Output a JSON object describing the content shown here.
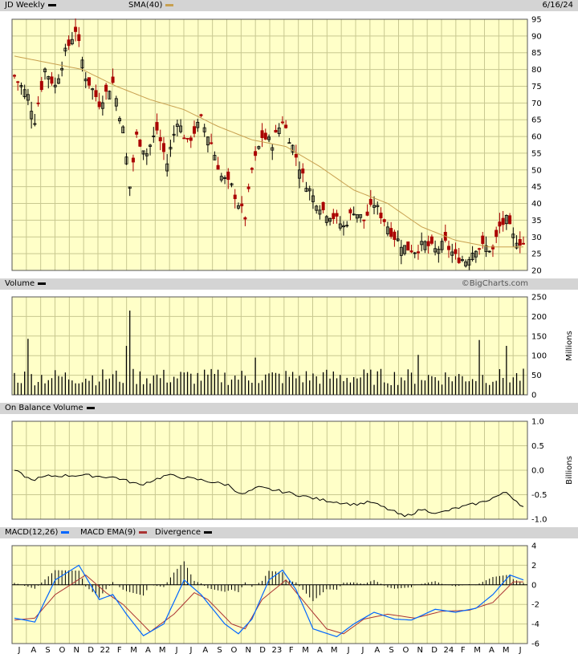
{
  "header": {
    "symbol_label": "JD Weekly",
    "sma_label": "SMA(40)",
    "date": "6/16/24",
    "watermark": "©BigCharts.com"
  },
  "panels": {
    "volume_label": "Volume",
    "obv_label": "On Balance Volume",
    "macd_label": "MACD(12,26)",
    "macd_ema_label": "MACD EMA(9)",
    "divergence_label": "Divergence"
  },
  "colors": {
    "background": "#ffffc8",
    "grid": "#c8c890",
    "up": "#000000",
    "down": "#aa0000",
    "sma": "#c8a050",
    "macd": "#0066ff",
    "macd_ema": "#aa3333",
    "band": "#d4d4d4"
  },
  "chart_data": [
    {
      "type": "candlestick",
      "title": "JD Weekly",
      "ylim": [
        20,
        95
      ],
      "y_ticks": [
        20,
        25,
        30,
        35,
        40,
        45,
        50,
        55,
        60,
        65,
        70,
        75,
        80,
        85,
        90,
        95
      ],
      "x_ticks": [
        "J",
        "A",
        "S",
        "O",
        "N",
        "D",
        "22",
        "F",
        "M",
        "A",
        "M",
        "J",
        "J",
        "A",
        "S",
        "O",
        "N",
        "D",
        "23",
        "F",
        "M",
        "A",
        "M",
        "J",
        "J",
        "A",
        "S",
        "O",
        "N",
        "D",
        "24",
        "F",
        "M",
        "A",
        "M",
        "J"
      ],
      "close_anchors": [
        {
          "week": 0,
          "close": 78
        },
        {
          "week": 4,
          "close": 72
        },
        {
          "week": 6,
          "close": 65
        },
        {
          "week": 9,
          "close": 80
        },
        {
          "week": 12,
          "close": 75
        },
        {
          "week": 15,
          "close": 85
        },
        {
          "week": 18,
          "close": 92
        },
        {
          "week": 21,
          "close": 78
        },
        {
          "week": 25,
          "close": 70
        },
        {
          "week": 29,
          "close": 76
        },
        {
          "week": 32,
          "close": 62
        },
        {
          "week": 34,
          "close": 45
        },
        {
          "week": 36,
          "close": 60
        },
        {
          "week": 39,
          "close": 55
        },
        {
          "week": 42,
          "close": 62
        },
        {
          "week": 45,
          "close": 52
        },
        {
          "week": 48,
          "close": 65
        },
        {
          "week": 51,
          "close": 58
        },
        {
          "week": 55,
          "close": 65
        },
        {
          "week": 58,
          "close": 58
        },
        {
          "week": 61,
          "close": 48
        },
        {
          "week": 64,
          "close": 45
        },
        {
          "week": 66,
          "close": 40
        },
        {
          "week": 68,
          "close": 36
        },
        {
          "week": 70,
          "close": 50
        },
        {
          "week": 73,
          "close": 60
        },
        {
          "week": 76,
          "close": 58
        },
        {
          "week": 79,
          "close": 65
        },
        {
          "week": 82,
          "close": 57
        },
        {
          "week": 85,
          "close": 48
        },
        {
          "week": 88,
          "close": 42
        },
        {
          "week": 91,
          "close": 38
        },
        {
          "week": 94,
          "close": 36
        },
        {
          "week": 97,
          "close": 33
        },
        {
          "week": 100,
          "close": 38
        },
        {
          "week": 103,
          "close": 35
        },
        {
          "week": 106,
          "close": 40
        },
        {
          "week": 109,
          "close": 35
        },
        {
          "week": 112,
          "close": 30
        },
        {
          "week": 115,
          "close": 27
        },
        {
          "week": 118,
          "close": 26
        },
        {
          "week": 121,
          "close": 28
        },
        {
          "week": 124,
          "close": 26
        },
        {
          "week": 127,
          "close": 28
        },
        {
          "week": 130,
          "close": 24
        },
        {
          "week": 133,
          "close": 23
        },
        {
          "week": 136,
          "close": 27
        },
        {
          "week": 139,
          "close": 27
        },
        {
          "week": 141,
          "close": 26
        },
        {
          "week": 143,
          "close": 33
        },
        {
          "week": 145,
          "close": 35
        },
        {
          "week": 147,
          "close": 30
        },
        {
          "week": 150,
          "close": 28
        }
      ],
      "sma40": [
        {
          "week": 0,
          "value": 84
        },
        {
          "week": 10,
          "value": 82
        },
        {
          "week": 20,
          "value": 80
        },
        {
          "week": 30,
          "value": 75
        },
        {
          "week": 40,
          "value": 71
        },
        {
          "week": 50,
          "value": 68
        },
        {
          "week": 60,
          "value": 63
        },
        {
          "week": 70,
          "value": 59
        },
        {
          "week": 80,
          "value": 57
        },
        {
          "week": 90,
          "value": 51
        },
        {
          "week": 100,
          "value": 44
        },
        {
          "week": 110,
          "value": 40
        },
        {
          "week": 120,
          "value": 33
        },
        {
          "week": 130,
          "value": 29
        },
        {
          "week": 140,
          "value": 27
        },
        {
          "week": 150,
          "value": 27
        }
      ]
    },
    {
      "type": "bar",
      "title": "Volume",
      "ylabel": "Millions",
      "ylim": [
        0,
        250
      ],
      "y_ticks": [
        0,
        50,
        100,
        150,
        200,
        250
      ],
      "spikes": [
        {
          "week": 4,
          "value": 143
        },
        {
          "week": 33,
          "value": 125
        },
        {
          "week": 34,
          "value": 215
        },
        {
          "week": 71,
          "value": 95
        },
        {
          "week": 119,
          "value": 102
        },
        {
          "week": 137,
          "value": 140
        },
        {
          "week": 145,
          "value": 125
        }
      ],
      "baseline": 48
    },
    {
      "type": "line",
      "title": "On Balance Volume",
      "ylabel": "Billions",
      "ylim": [
        -1.0,
        1.0
      ],
      "y_ticks": [
        -1.0,
        -0.5,
        0.0,
        0.5,
        1.0
      ],
      "points": [
        {
          "week": 0,
          "value": 0.0
        },
        {
          "week": 5,
          "value": -0.2
        },
        {
          "week": 10,
          "value": -0.12
        },
        {
          "week": 20,
          "value": -0.1
        },
        {
          "week": 30,
          "value": -0.15
        },
        {
          "week": 37,
          "value": -0.3
        },
        {
          "week": 45,
          "value": -0.1
        },
        {
          "week": 55,
          "value": -0.2
        },
        {
          "week": 63,
          "value": -0.3
        },
        {
          "week": 67,
          "value": -0.5
        },
        {
          "week": 72,
          "value": -0.35
        },
        {
          "week": 80,
          "value": -0.45
        },
        {
          "week": 90,
          "value": -0.6
        },
        {
          "week": 100,
          "value": -0.7
        },
        {
          "week": 105,
          "value": -0.65
        },
        {
          "week": 112,
          "value": -0.85
        },
        {
          "week": 115,
          "value": -0.95
        },
        {
          "week": 120,
          "value": -0.8
        },
        {
          "week": 125,
          "value": -0.88
        },
        {
          "week": 130,
          "value": -0.78
        },
        {
          "week": 138,
          "value": -0.65
        },
        {
          "week": 145,
          "value": -0.45
        },
        {
          "week": 150,
          "value": -0.75
        }
      ]
    },
    {
      "type": "macd",
      "title": "MACD(12,26)",
      "ylim": [
        -6,
        4
      ],
      "y_ticks": [
        -6,
        -4,
        -2,
        0,
        2,
        4
      ],
      "macd": [
        {
          "week": 0,
          "value": -3.4
        },
        {
          "week": 6,
          "value": -3.8
        },
        {
          "week": 12,
          "value": 0.5
        },
        {
          "week": 19,
          "value": 2.0
        },
        {
          "week": 25,
          "value": -1.5
        },
        {
          "week": 29,
          "value": -1.0
        },
        {
          "week": 33,
          "value": -3.0
        },
        {
          "week": 38,
          "value": -5.2
        },
        {
          "week": 44,
          "value": -4.0
        },
        {
          "week": 50,
          "value": 0.5
        },
        {
          "week": 55,
          "value": -1.0
        },
        {
          "week": 62,
          "value": -4.0
        },
        {
          "week": 66,
          "value": -5.0
        },
        {
          "week": 70,
          "value": -3.5
        },
        {
          "week": 75,
          "value": 0.5
        },
        {
          "week": 79,
          "value": 1.5
        },
        {
          "week": 83,
          "value": -0.5
        },
        {
          "week": 88,
          "value": -4.5
        },
        {
          "week": 95,
          "value": -5.3
        },
        {
          "week": 100,
          "value": -4.0
        },
        {
          "week": 106,
          "value": -2.8
        },
        {
          "week": 112,
          "value": -3.5
        },
        {
          "week": 117,
          "value": -3.6
        },
        {
          "week": 124,
          "value": -2.5
        },
        {
          "week": 130,
          "value": -2.8
        },
        {
          "week": 136,
          "value": -2.4
        },
        {
          "week": 141,
          "value": -1.0
        },
        {
          "week": 146,
          "value": 1.0
        },
        {
          "week": 150,
          "value": 0.5
        }
      ],
      "ema": [
        {
          "week": 0,
          "value": -3.6
        },
        {
          "week": 6,
          "value": -3.4
        },
        {
          "week": 12,
          "value": -1.0
        },
        {
          "week": 21,
          "value": 1.0
        },
        {
          "week": 27,
          "value": -0.8
        },
        {
          "week": 32,
          "value": -2.0
        },
        {
          "week": 40,
          "value": -4.8
        },
        {
          "week": 47,
          "value": -3.0
        },
        {
          "week": 53,
          "value": -0.8
        },
        {
          "week": 57,
          "value": -1.5
        },
        {
          "week": 64,
          "value": -4.0
        },
        {
          "week": 68,
          "value": -4.5
        },
        {
          "week": 73,
          "value": -1.5
        },
        {
          "week": 80,
          "value": 0.5
        },
        {
          "week": 86,
          "value": -2.0
        },
        {
          "week": 92,
          "value": -4.5
        },
        {
          "week": 97,
          "value": -5.0
        },
        {
          "week": 103,
          "value": -3.5
        },
        {
          "week": 110,
          "value": -3.0
        },
        {
          "week": 118,
          "value": -3.4
        },
        {
          "week": 126,
          "value": -2.7
        },
        {
          "week": 134,
          "value": -2.6
        },
        {
          "week": 141,
          "value": -1.8
        },
        {
          "week": 147,
          "value": 0.3
        },
        {
          "week": 150,
          "value": 0.3
        }
      ]
    }
  ]
}
